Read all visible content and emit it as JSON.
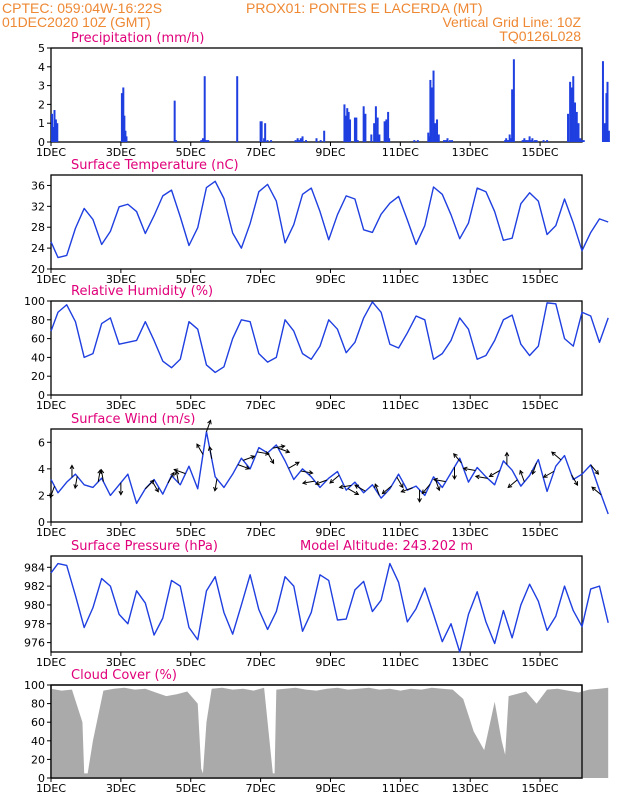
{
  "header": {
    "left1": "CPTEC:  059:04W-16:22S",
    "center1": "PROX01: PONTES E LACERDA (MT)",
    "left2": "01DEC2020 10Z (GMT)",
    "right2": "Vertical Grid Line: 10Z",
    "right3": "TQ0126L028"
  },
  "colors": {
    "header": "#ee8833",
    "title": "#e0007a",
    "line": "#1f3fe0",
    "bar": "#1f3fe0",
    "cloud": "#aaaaaa",
    "vane": "#000000"
  },
  "x_ticks": [
    "1DEC",
    "3DEC",
    "5DEC",
    "7DEC",
    "9DEC",
    "11DEC",
    "13DEC",
    "15DEC"
  ],
  "chart_data": [
    {
      "id": "precip",
      "type": "bar",
      "title": "Precipitation (mm/h)",
      "ylim": [
        0,
        5
      ],
      "yticks": [
        0,
        1,
        2,
        3,
        4,
        5
      ],
      "x_unit": "day offset from 01DEC 10Z",
      "x": [
        0.03,
        0.06,
        0.1,
        0.14,
        0.18,
        2.03,
        2.07,
        2.1,
        2.13,
        2.16,
        3.54,
        3.58,
        4.3,
        4.35,
        4.4,
        4.45,
        4.5,
        5.33,
        6.0,
        6.03,
        6.1,
        6.13,
        6.2,
        6.3,
        7.0,
        7.06,
        7.1,
        7.15,
        7.2,
        7.3,
        7.6,
        7.72,
        7.82,
        8.4,
        8.44,
        8.48,
        8.52,
        8.56,
        8.7,
        8.74,
        8.78,
        8.95,
        9.0,
        9.17,
        9.25,
        9.3,
        9.35,
        9.4,
        9.55,
        9.6,
        9.65,
        9.68,
        10.4,
        10.5,
        10.8,
        10.83,
        10.86,
        10.9,
        10.95,
        11.0,
        11.05,
        11.1,
        11.25,
        11.3,
        11.35,
        11.42,
        11.48,
        13.0,
        13.03,
        13.06,
        13.1,
        13.13,
        13.16,
        13.2,
        13.25,
        13.5,
        13.55,
        13.6,
        13.65,
        13.7,
        13.75,
        13.78,
        13.85,
        13.9,
        14.1,
        14.2,
        14.8,
        14.86,
        14.9,
        14.95,
        15.0,
        15.05,
        15.1,
        15.15,
        15.2,
        15.25,
        15.8,
        15.85,
        15.9,
        15.93,
        15.97
      ],
      "values": [
        1.5,
        0.8,
        1.7,
        1.2,
        1.0,
        2.6,
        2.9,
        1.4,
        0.6,
        0.3,
        2.2,
        0.1,
        0.1,
        0.2,
        3.5,
        0.1,
        0.1,
        3.5,
        1.1,
        1.1,
        0.2,
        1.0,
        0.1,
        0.1,
        0.1,
        0.2,
        0.1,
        0.2,
        0.3,
        0.1,
        0.2,
        0.1,
        0.6,
        2.0,
        1.4,
        1.8,
        1.6,
        1.2,
        1.3,
        1.3,
        0.1,
        1.9,
        1.5,
        0.4,
        1.0,
        1.9,
        1.3,
        0.4,
        1.1,
        1.2,
        1.6,
        0.2,
        0.1,
        0.1,
        0.5,
        0.3,
        3.3,
        2.9,
        3.8,
        1.0,
        1.2,
        0.4,
        0.1,
        0.1,
        0.2,
        0.1,
        0.1,
        0.1,
        0.2,
        0.1,
        0.1,
        0.4,
        0.2,
        2.8,
        4.4,
        0.1,
        0.2,
        0.1,
        0.1,
        0.3,
        0.1,
        0.2,
        0.1,
        0.1,
        0.1,
        0.1,
        1.5,
        3.2,
        2.9,
        3.5,
        2.1,
        1.6,
        1.0,
        0.2,
        0.1,
        0.1,
        4.3,
        1.0,
        2.6,
        3.2,
        0.6
      ]
    },
    {
      "id": "temp",
      "type": "line",
      "title": "Surface Temperature (nC)",
      "ylim": [
        20,
        38
      ],
      "yticks": [
        20,
        24,
        28,
        32,
        36
      ],
      "x": [
        0,
        0.2,
        0.45,
        0.7,
        0.95,
        1.2,
        1.45,
        1.7,
        1.95,
        2.2,
        2.45,
        2.7,
        2.95,
        3.2,
        3.45,
        3.7,
        3.95,
        4.2,
        4.45,
        4.7,
        4.95,
        5.2,
        5.45,
        5.7,
        5.95,
        6.2,
        6.45,
        6.7,
        6.95,
        7.2,
        7.45,
        7.7,
        7.95,
        8.2,
        8.45,
        8.7,
        8.95,
        9.2,
        9.45,
        9.7,
        9.95,
        10.2,
        10.45,
        10.7,
        10.95,
        11.2,
        11.45,
        11.7,
        11.95,
        12.2,
        12.45,
        12.7,
        12.95,
        13.2,
        13.45,
        13.7,
        13.95,
        14.2,
        14.45,
        14.7,
        14.95,
        15.2,
        15.45,
        15.7,
        15.95
      ],
      "values": [
        25.2,
        22.2,
        22.6,
        27.8,
        31.6,
        29.5,
        24.7,
        27.2,
        31.9,
        32.4,
        31.0,
        26.8,
        30.2,
        34.0,
        35.1,
        30.0,
        24.5,
        27.9,
        35.6,
        36.8,
        33.5,
        26.9,
        24.0,
        28.7,
        34.8,
        36.2,
        33.0,
        25.0,
        28.5,
        34.3,
        35.5,
        31.0,
        25.6,
        30.4,
        34.0,
        33.4,
        27.5,
        27.0,
        30.5,
        32.6,
        33.9,
        29.4,
        24.7,
        28.3,
        35.7,
        34.3,
        30.4,
        25.8,
        28.8,
        35.5,
        34.8,
        31.0,
        25.5,
        25.9,
        32.5,
        34.6,
        33.0,
        26.6,
        28.3,
        33.4,
        28.8,
        23.5,
        27.0,
        29.6,
        29.0
      ]
    },
    {
      "id": "rh",
      "type": "line",
      "title": "Relative Humidity (%)",
      "ylim": [
        0,
        100
      ],
      "yticks": [
        0,
        20,
        40,
        60,
        80,
        100
      ],
      "x": [
        0,
        0.2,
        0.45,
        0.7,
        0.95,
        1.2,
        1.45,
        1.7,
        1.95,
        2.2,
        2.45,
        2.7,
        2.95,
        3.2,
        3.45,
        3.7,
        3.95,
        4.2,
        4.45,
        4.7,
        4.95,
        5.2,
        5.45,
        5.7,
        5.95,
        6.2,
        6.45,
        6.7,
        6.95,
        7.2,
        7.45,
        7.7,
        7.95,
        8.2,
        8.45,
        8.7,
        8.95,
        9.2,
        9.45,
        9.7,
        9.95,
        10.2,
        10.45,
        10.7,
        10.95,
        11.2,
        11.45,
        11.7,
        11.95,
        12.2,
        12.45,
        12.7,
        12.95,
        13.2,
        13.45,
        13.7,
        13.95,
        14.2,
        14.45,
        14.7,
        14.95,
        15.2,
        15.45,
        15.7,
        15.95
      ],
      "values": [
        68,
        88,
        96,
        78,
        40,
        44,
        76,
        82,
        54,
        56,
        58,
        78,
        58,
        36,
        29,
        38,
        78,
        70,
        32,
        24,
        30,
        60,
        80,
        78,
        44,
        35,
        40,
        80,
        68,
        44,
        38,
        52,
        80,
        70,
        45,
        56,
        82,
        99,
        88,
        54,
        50,
        66,
        84,
        80,
        38,
        44,
        58,
        82,
        70,
        38,
        42,
        58,
        80,
        85,
        54,
        42,
        52,
        98,
        97,
        60,
        52,
        88,
        84,
        56,
        82
      ]
    },
    {
      "id": "wind",
      "type": "line",
      "title": "Surface Wind (m/s)",
      "ylim": [
        0,
        7
      ],
      "yticks": [
        0,
        2,
        4,
        6
      ],
      "x": [
        0,
        0.2,
        0.45,
        0.7,
        0.95,
        1.2,
        1.45,
        1.7,
        1.95,
        2.2,
        2.45,
        2.7,
        2.95,
        3.2,
        3.45,
        3.7,
        3.95,
        4.2,
        4.45,
        4.7,
        4.95,
        5.2,
        5.45,
        5.7,
        5.95,
        6.2,
        6.45,
        6.7,
        6.95,
        7.2,
        7.45,
        7.7,
        7.95,
        8.2,
        8.45,
        8.7,
        8.95,
        9.2,
        9.45,
        9.7,
        9.95,
        10.2,
        10.45,
        10.7,
        10.95,
        11.2,
        11.45,
        11.7,
        11.95,
        12.2,
        12.45,
        12.7,
        12.95,
        13.2,
        13.45,
        13.7,
        13.95,
        14.2,
        14.45,
        14.7,
        14.95,
        15.2,
        15.45,
        15.7,
        15.95
      ],
      "values": [
        3.2,
        2.2,
        3.0,
        3.6,
        2.8,
        2.6,
        3.3,
        2.0,
        2.8,
        3.6,
        1.4,
        2.5,
        3.2,
        2.1,
        3.5,
        2.8,
        4.2,
        2.5,
        6.8,
        3.4,
        2.6,
        3.6,
        4.8,
        4.0,
        5.6,
        5.2,
        5.8,
        4.6,
        3.2,
        4.0,
        3.4,
        2.6,
        3.3,
        3.8,
        2.4,
        3.0,
        2.2,
        2.8,
        1.8,
        2.5,
        3.6,
        2.4,
        2.7,
        2.0,
        3.4,
        2.6,
        3.7,
        4.8,
        3.0,
        4.1,
        3.4,
        2.8,
        4.6,
        3.9,
        2.7,
        3.5,
        4.7,
        2.3,
        4.2,
        5.0,
        3.2,
        3.6,
        4.3,
        2.4,
        0.6
      ],
      "vanes_x": [
        0.1,
        0.6,
        0.75,
        1.35,
        1.5,
        2.0,
        2.7,
        2.9,
        3.35,
        3.65,
        3.85,
        4.35,
        4.45,
        4.6,
        4.75,
        5.35,
        5.5,
        5.9,
        6.2,
        6.35,
        6.5,
        6.8,
        7.15,
        7.55,
        7.9,
        8.25,
        8.5,
        8.6,
        9.0,
        9.4,
        9.75,
        9.9,
        10.35,
        10.55,
        10.85,
        11.0,
        11.3,
        11.55,
        11.75,
        12.15,
        12.5,
        12.85,
        13.05,
        13.35,
        13.55,
        13.9,
        14.4,
        14.6,
        14.9,
        15.45,
        15.75
      ],
      "vanes_dir": [
        250,
        90,
        260,
        80,
        100,
        270,
        45,
        300,
        60,
        100,
        160,
        120,
        70,
        100,
        260,
        340,
        20,
        350,
        300,
        10,
        340,
        30,
        350,
        190,
        200,
        220,
        330,
        190,
        150,
        110,
        220,
        300,
        200,
        270,
        230,
        290,
        170,
        270,
        130,
        170,
        170,
        210,
        90,
        220,
        110,
        250,
        210,
        140,
        300,
        310,
        140
      ]
    },
    {
      "id": "press",
      "type": "line",
      "title": "Surface Pressure (hPa)",
      "annotation": "Model Altitude: 243.202  m",
      "ylim": [
        975,
        985.2
      ],
      "yticks": [
        976,
        978,
        980,
        982,
        984
      ],
      "x": [
        0,
        0.2,
        0.45,
        0.7,
        0.95,
        1.2,
        1.45,
        1.7,
        1.95,
        2.2,
        2.45,
        2.7,
        2.95,
        3.2,
        3.45,
        3.7,
        3.95,
        4.2,
        4.45,
        4.7,
        4.95,
        5.2,
        5.45,
        5.7,
        5.95,
        6.2,
        6.45,
        6.7,
        6.95,
        7.2,
        7.45,
        7.7,
        7.95,
        8.2,
        8.45,
        8.7,
        8.95,
        9.2,
        9.45,
        9.7,
        9.95,
        10.2,
        10.45,
        10.7,
        10.95,
        11.2,
        11.45,
        11.7,
        11.95,
        12.2,
        12.45,
        12.7,
        12.95,
        13.2,
        13.45,
        13.7,
        13.95,
        14.2,
        14.45,
        14.7,
        14.95,
        15.2,
        15.45,
        15.7,
        15.95
      ],
      "values": [
        983.4,
        984.4,
        984.2,
        981.0,
        977.6,
        979.7,
        982.8,
        982.0,
        979.0,
        978.0,
        981.5,
        980.2,
        976.8,
        978.6,
        982.6,
        982.0,
        977.6,
        976.3,
        981.5,
        983.0,
        979.2,
        976.9,
        980.0,
        983.2,
        979.5,
        977.4,
        979.3,
        983.0,
        982.0,
        977.2,
        979.2,
        983.2,
        982.6,
        978.4,
        978.5,
        981.6,
        982.5,
        979.3,
        980.5,
        984.4,
        982.4,
        978.2,
        979.6,
        981.8,
        979.0,
        976.1,
        978.0,
        975.0,
        979.0,
        981.4,
        978.2,
        975.9,
        979.4,
        976.5,
        980.0,
        982.2,
        980.4,
        977.3,
        978.8,
        982.0,
        979.4,
        977.7,
        981.7,
        982.0,
        978.1
      ]
    },
    {
      "id": "cloud",
      "type": "area",
      "title": "Cloud Cover (%)",
      "ylim": [
        0,
        100
      ],
      "yticks": [
        0,
        20,
        40,
        60,
        80,
        100
      ],
      "x": [
        0,
        0.3,
        0.6,
        0.9,
        0.95,
        1.05,
        1.2,
        1.5,
        1.8,
        2.1,
        2.4,
        2.7,
        3.0,
        3.3,
        3.6,
        3.9,
        4.2,
        4.3,
        4.35,
        4.45,
        4.6,
        4.9,
        5.2,
        5.5,
        5.8,
        6.1,
        6.35,
        6.4,
        6.45,
        6.7,
        7.0,
        7.3,
        7.6,
        7.9,
        8.2,
        8.5,
        8.8,
        9.1,
        9.4,
        9.7,
        10.0,
        10.3,
        10.6,
        10.9,
        11.2,
        11.5,
        11.8,
        12.1,
        12.4,
        12.7,
        12.9,
        13.0,
        13.1,
        13.3,
        13.6,
        13.9,
        14.2,
        14.5,
        14.8,
        15.1,
        15.4,
        15.7,
        15.95
      ],
      "values": [
        96,
        94,
        95,
        60,
        5,
        5,
        40,
        94,
        96,
        97,
        95,
        96,
        92,
        88,
        90,
        93,
        80,
        10,
        5,
        60,
        96,
        97,
        95,
        96,
        94,
        97,
        5,
        5,
        95,
        96,
        97,
        95,
        94,
        96,
        97,
        95,
        96,
        97,
        95,
        96,
        94,
        96,
        95,
        97,
        96,
        95,
        85,
        50,
        30,
        82,
        40,
        25,
        88,
        90,
        93,
        80,
        95,
        96,
        94,
        92,
        95,
        96,
        97
      ]
    }
  ]
}
